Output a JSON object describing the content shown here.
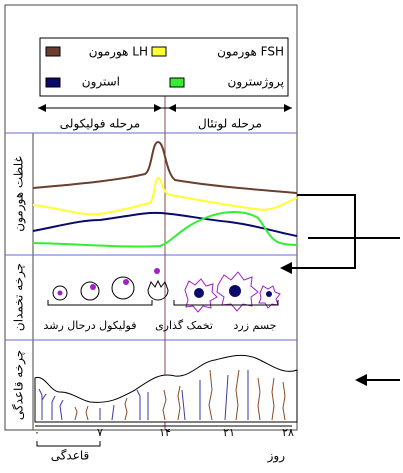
{
  "legend": {
    "items": [
      {
        "label": "هورمون LH"
      },
      {
        "label": "هورمون FSH"
      },
      {
        "label": "استرون"
      },
      {
        "label": "پروژسترون"
      }
    ]
  },
  "phases": {
    "follicular": "مرحله فولیکولی",
    "luteal": "مرحله لوتئال"
  },
  "row_labels": {
    "hormone": "غلظت هورمون",
    "ovary": "چرخه تخمدان",
    "menstrual": "چرخه قاعدگی"
  },
  "ovary_labels": {
    "growing": "فولیکول درحال رشد",
    "ovulation": "تخمک گذاری",
    "corpus": "جسم زرد"
  },
  "axis": {
    "ticks": [
      "۰",
      "۷",
      "۱۴",
      "۲۱",
      "۲۸"
    ],
    "title": "روز",
    "menses": "قاعدگی"
  }
}
